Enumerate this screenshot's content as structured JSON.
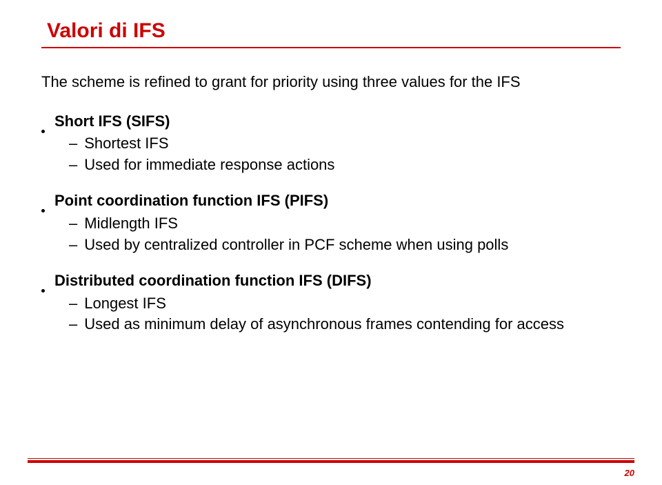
{
  "title": "Valori di IFS",
  "intro": "The scheme is refined to grant for priority using three values for the IFS",
  "items": [
    {
      "heading": "Short IFS (SIFS)",
      "subs": [
        "Shortest IFS",
        "Used for immediate response actions"
      ]
    },
    {
      "heading": "Point coordination function IFS (PIFS)",
      "subs": [
        "Midlength IFS",
        "Used by centralized controller in PCF scheme when using polls"
      ]
    },
    {
      "heading": "Distributed coordination function IFS (DIFS)",
      "subs": [
        "Longest IFS",
        "Used as minimum delay of asynchronous frames contending for access"
      ]
    }
  ],
  "page_number": "20",
  "colors": {
    "accent": "#cc0000",
    "text": "#000000",
    "background": "#ffffff"
  }
}
